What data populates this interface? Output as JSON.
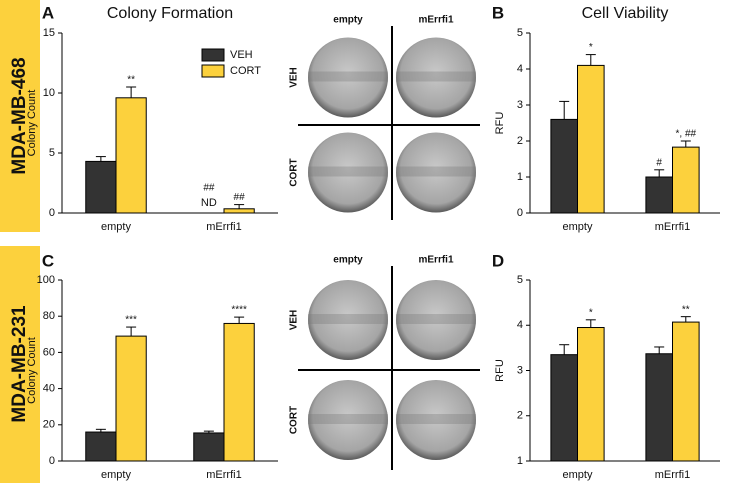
{
  "rows": [
    "MDA-MB-468",
    "MDA-MB-231"
  ],
  "images": [
    {
      "columns": [
        "empty",
        "mErrfi1"
      ],
      "rows": [
        "VEH",
        "CORT"
      ]
    },
    {
      "columns": [
        "empty",
        "mErrfi1"
      ],
      "rows": [
        "VEH",
        "CORT"
      ]
    }
  ],
  "chart_data": [
    {
      "type": "bar",
      "panel": "A",
      "title": "Colony Formation",
      "y_label": "Colony Count",
      "categories": [
        "empty",
        "mErrfi1"
      ],
      "ylim": [
        0,
        15
      ],
      "yticks": [
        0,
        5,
        10,
        15
      ],
      "legend": true,
      "series": [
        {
          "name": "VEH",
          "color": "#333333",
          "values": [
            4.3,
            null
          ],
          "errors": [
            0.4,
            null
          ],
          "annotations": [
            null,
            "##"
          ],
          "value_labels": [
            null,
            "ND"
          ]
        },
        {
          "name": "CORT",
          "color": "#fcd13d",
          "values": [
            9.6,
            0.35
          ],
          "errors": [
            0.9,
            0.35
          ],
          "annotations": [
            "**",
            "##"
          ]
        }
      ]
    },
    {
      "type": "bar",
      "panel": "B",
      "title": "Cell Viability",
      "y_label": "RFU",
      "categories": [
        "empty",
        "mErrfi1"
      ],
      "ylim": [
        0,
        5
      ],
      "yticks": [
        0,
        1,
        2,
        3,
        4,
        5
      ],
      "legend": false,
      "series": [
        {
          "name": "VEH",
          "color": "#333333",
          "values": [
            2.6,
            1.0
          ],
          "errors": [
            0.5,
            0.2
          ],
          "annotations": [
            null,
            "#"
          ]
        },
        {
          "name": "CORT",
          "color": "#fcd13d",
          "values": [
            4.1,
            1.83
          ],
          "errors": [
            0.3,
            0.17
          ],
          "annotations": [
            "*",
            "*, ##"
          ]
        }
      ]
    },
    {
      "type": "bar",
      "panel": "C",
      "y_label": "Colony Count",
      "categories": [
        "empty",
        "mErrfi1"
      ],
      "ylim": [
        0,
        100
      ],
      "yticks": [
        0,
        20,
        40,
        60,
        80,
        100
      ],
      "legend": false,
      "series": [
        {
          "name": "VEH",
          "color": "#333333",
          "values": [
            16,
            15.5
          ],
          "errors": [
            1.5,
            1
          ],
          "annotations": [
            null,
            null
          ]
        },
        {
          "name": "CORT",
          "color": "#fcd13d",
          "values": [
            69,
            76
          ],
          "errors": [
            5,
            3.5
          ],
          "annotations": [
            "***",
            "****"
          ]
        }
      ]
    },
    {
      "type": "bar",
      "panel": "D",
      "y_label": "RFU",
      "categories": [
        "empty",
        "mErrfi1"
      ],
      "ylim": [
        1,
        5
      ],
      "yticks": [
        1,
        2,
        3,
        4,
        5
      ],
      "legend": false,
      "series": [
        {
          "name": "VEH",
          "color": "#333333",
          "values": [
            3.35,
            3.37
          ],
          "errors": [
            0.22,
            0.15
          ],
          "annotations": [
            null,
            null
          ]
        },
        {
          "name": "CORT",
          "color": "#fcd13d",
          "values": [
            3.95,
            4.07
          ],
          "errors": [
            0.17,
            0.12
          ],
          "annotations": [
            "*",
            "**"
          ]
        }
      ]
    }
  ]
}
